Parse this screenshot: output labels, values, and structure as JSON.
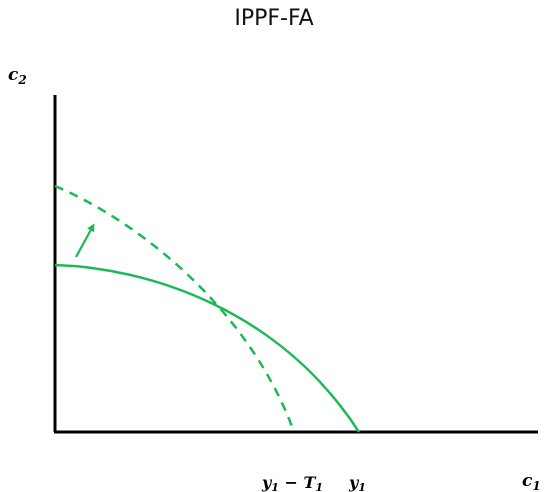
{
  "title": "IPPF-FA",
  "axes": {
    "y_label": "c",
    "y_label_sub": "2",
    "x_label": "c",
    "x_label_sub": "1"
  },
  "ticks": {
    "y1_minus_t1": {
      "a": "y",
      "a_sub": "1",
      "op": " − ",
      "b": "T",
      "b_sub": "1"
    },
    "y1": {
      "a": "y",
      "a_sub": "1"
    }
  },
  "colors": {
    "axis": "#000000",
    "curve": "#1db954"
  }
}
